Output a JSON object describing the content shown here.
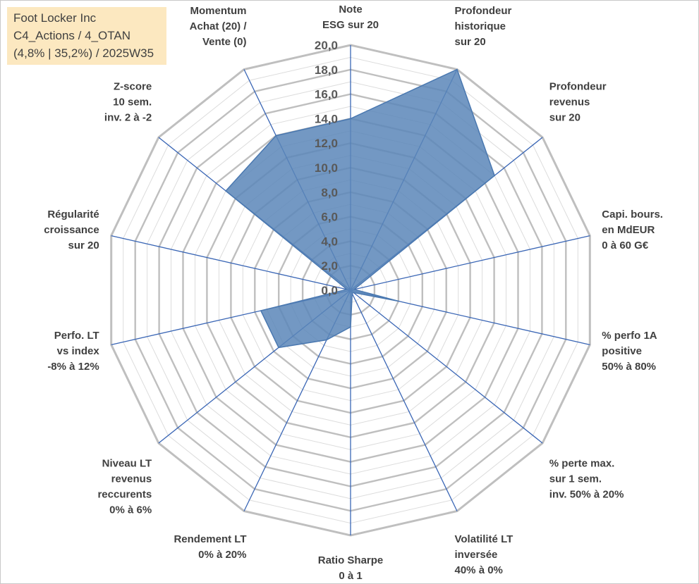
{
  "info_box": {
    "line1": "Foot Locker Inc",
    "line2": "C4_Actions / 4_OTAN",
    "line3": "(4,8% | 35,2%) / 2025W35"
  },
  "colors": {
    "fill": "#5b86b8",
    "outline": "#4a78b0",
    "spoke": "#3a66b5",
    "grid_major": "#bfbfbf",
    "grid_minor": "#dcdcdc",
    "info_bg": "#fce8c0"
  },
  "chart_data": {
    "type": "radar",
    "rmin": 0,
    "rmax": 20,
    "tick_labels": [
      "0,0",
      "2,0",
      "4,0",
      "6,0",
      "8,0",
      "10,0",
      "12,0",
      "14,0",
      "16,0",
      "18,0",
      "20,0"
    ],
    "axes": [
      {
        "label": [
          "Note",
          "ESG sur 20"
        ],
        "value": 14.0
      },
      {
        "label": [
          "Profondeur",
          "historique",
          "sur 20"
        ],
        "value": 20.0
      },
      {
        "label": [
          "Profondeur",
          "revenus",
          "sur 20"
        ],
        "value": 15.0
      },
      {
        "label": [
          "Capi. bours.",
          "en MdEUR",
          "0 à 60 G€"
        ],
        "value": 0.3
      },
      {
        "label": [
          "% perfo 1A",
          "positive",
          "50% à 80%"
        ],
        "value": 4.0
      },
      {
        "label": [
          "% perte max.",
          "sur 1 sem.",
          "inv. 50% à 20%"
        ],
        "value": 0.3
      },
      {
        "label": [
          "Volatilité LT",
          "inversée",
          "40% à 0%"
        ],
        "value": 0.3
      },
      {
        "label": [
          "Ratio Sharpe",
          "0 à 1"
        ],
        "value": 3.0
      },
      {
        "label": [
          "Rendement LT",
          "0% à 20%"
        ],
        "value": 4.5
      },
      {
        "label": [
          "Niveau LT",
          "revenus",
          "reccurents",
          "0% à 6%"
        ],
        "value": 7.5
      },
      {
        "label": [
          "Perfo. LT",
          "vs index",
          "-8% à 12%"
        ],
        "value": 7.5
      },
      {
        "label": [
          "Régularité",
          "croissance",
          "sur 20"
        ],
        "value": 0.3
      },
      {
        "label": [
          "Z-score",
          "10 sem.",
          "inv. 2 à -2"
        ],
        "value": 13.0
      },
      {
        "label": [
          "Momentum",
          "Achat (20) /",
          "Vente (0)"
        ],
        "value": 14.0
      }
    ]
  }
}
